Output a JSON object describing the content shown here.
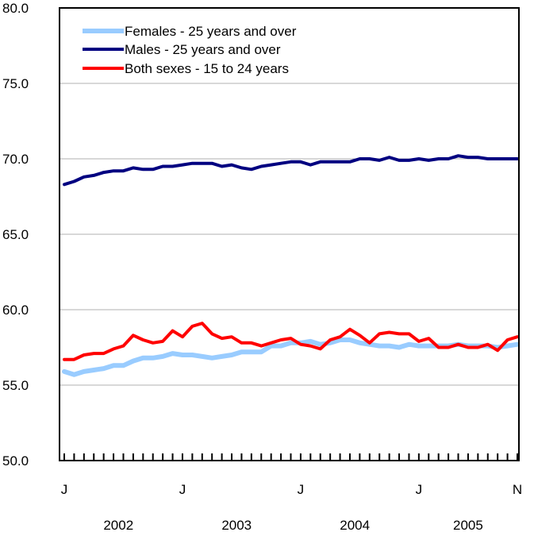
{
  "chart_data": {
    "type": "line",
    "title": "",
    "xlabel": "",
    "ylabel": "",
    "ylim": [
      50,
      80
    ],
    "y_ticks": [
      "50.0",
      "55.0",
      "60.0",
      "65.0",
      "70.0",
      "75.0",
      "80.0"
    ],
    "grid": "horizontal",
    "legend_position": "top-left",
    "x_month_labels": [
      {
        "index": 0,
        "label": "J"
      },
      {
        "index": 12,
        "label": "J"
      },
      {
        "index": 24,
        "label": "J"
      },
      {
        "index": 36,
        "label": "J"
      },
      {
        "index": 46,
        "label": "N"
      }
    ],
    "x_year_labels": [
      {
        "center": 5.5,
        "label": "2002"
      },
      {
        "center": 17.5,
        "label": "2003"
      },
      {
        "center": 29.5,
        "label": "2004"
      },
      {
        "center": 41,
        "label": "2005"
      }
    ],
    "x": [
      "Jan 2002",
      "Feb 2002",
      "Mar 2002",
      "Apr 2002",
      "May 2002",
      "Jun 2002",
      "Jul 2002",
      "Aug 2002",
      "Sep 2002",
      "Oct 2002",
      "Nov 2002",
      "Dec 2002",
      "Jan 2003",
      "Feb 2003",
      "Mar 2003",
      "Apr 2003",
      "May 2003",
      "Jun 2003",
      "Jul 2003",
      "Aug 2003",
      "Sep 2003",
      "Oct 2003",
      "Nov 2003",
      "Dec 2003",
      "Jan 2004",
      "Feb 2004",
      "Mar 2004",
      "Apr 2004",
      "May 2004",
      "Jun 2004",
      "Jul 2004",
      "Aug 2004",
      "Sep 2004",
      "Oct 2004",
      "Nov 2004",
      "Dec 2004",
      "Jan 2005",
      "Feb 2005",
      "Mar 2005",
      "Apr 2005",
      "May 2005",
      "Jun 2005",
      "Jul 2005",
      "Aug 2005",
      "Sep 2005",
      "Oct 2005",
      "Nov 2005"
    ],
    "series": [
      {
        "name": "Females - 25 years and over",
        "color": "#99ccff",
        "values": [
          55.9,
          55.7,
          55.9,
          56.0,
          56.1,
          56.3,
          56.3,
          56.6,
          56.8,
          56.8,
          56.9,
          57.1,
          57.0,
          57.0,
          56.9,
          56.8,
          56.9,
          57.0,
          57.2,
          57.2,
          57.2,
          57.6,
          57.6,
          57.8,
          57.8,
          57.9,
          57.7,
          57.8,
          58.0,
          58.0,
          57.8,
          57.7,
          57.6,
          57.6,
          57.5,
          57.7,
          57.6,
          57.6,
          57.6,
          57.6,
          57.7,
          57.6,
          57.6,
          57.6,
          57.5,
          57.6,
          57.7
        ]
      },
      {
        "name": "Males - 25 years and over",
        "color": "#000080",
        "values": [
          68.3,
          68.5,
          68.8,
          68.9,
          69.1,
          69.2,
          69.2,
          69.4,
          69.3,
          69.3,
          69.5,
          69.5,
          69.6,
          69.7,
          69.7,
          69.7,
          69.5,
          69.6,
          69.4,
          69.3,
          69.5,
          69.6,
          69.7,
          69.8,
          69.8,
          69.6,
          69.8,
          69.8,
          69.8,
          69.8,
          70.0,
          70.0,
          69.9,
          70.1,
          69.9,
          69.9,
          70.0,
          69.9,
          70.0,
          70.0,
          70.2,
          70.1,
          70.1,
          70.0,
          70.0,
          70.0,
          70.0
        ]
      },
      {
        "name": "Both sexes - 15 to 24 years",
        "color": "#ff0000",
        "values": [
          56.7,
          56.7,
          57.0,
          57.1,
          57.1,
          57.4,
          57.6,
          58.3,
          58.0,
          57.8,
          57.9,
          58.6,
          58.2,
          58.9,
          59.1,
          58.4,
          58.1,
          58.2,
          57.8,
          57.8,
          57.6,
          57.8,
          58.0,
          58.1,
          57.7,
          57.6,
          57.4,
          58.0,
          58.2,
          58.7,
          58.3,
          57.8,
          58.4,
          58.5,
          58.4,
          58.4,
          57.9,
          58.1,
          57.5,
          57.5,
          57.7,
          57.5,
          57.5,
          57.7,
          57.3,
          58.0,
          58.2
        ]
      }
    ]
  }
}
